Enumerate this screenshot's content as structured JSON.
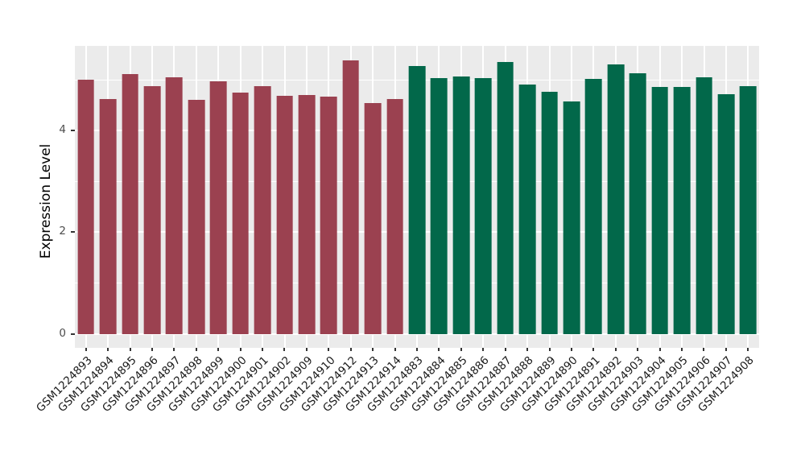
{
  "figure": {
    "background_color": "#FFFFFF",
    "panel_background_color": "#EBEBEB",
    "gridline_color": "#FFFFFF",
    "axis_tick_color": "#333333",
    "y_tick_text_color": "#4D4D4D",
    "x_tick_text_color": "#1A1A1A"
  },
  "chart_data": {
    "type": "bar",
    "title": "",
    "xlabel": "",
    "ylabel": "Expression Level",
    "ylim": [
      -0.27,
      5.65
    ],
    "ytick_labels": [
      "0",
      "2",
      "4"
    ],
    "ytick_values": [
      0,
      2,
      4
    ],
    "minor_gridline_values": [
      1,
      3,
      5
    ],
    "grid": "white major and minor horizontal gridlines on gray panel; white vertical gridline at each bar center",
    "legend_position": "none",
    "x_label_rotation_deg": 45,
    "group_colors": {
      "group1": "#9B4150",
      "group2": "#02684A"
    },
    "bars": [
      {
        "label": "GSM1224893",
        "value": 5.0,
        "group": "group1"
      },
      {
        "label": "GSM1224894",
        "value": 4.62,
        "group": "group1"
      },
      {
        "label": "GSM1224895",
        "value": 5.11,
        "group": "group1"
      },
      {
        "label": "GSM1224896",
        "value": 4.88,
        "group": "group1"
      },
      {
        "label": "GSM1224897",
        "value": 5.05,
        "group": "group1"
      },
      {
        "label": "GSM1224898",
        "value": 4.6,
        "group": "group1"
      },
      {
        "label": "GSM1224899",
        "value": 4.97,
        "group": "group1"
      },
      {
        "label": "GSM1224900",
        "value": 4.75,
        "group": "group1"
      },
      {
        "label": "GSM1224901",
        "value": 4.88,
        "group": "group1"
      },
      {
        "label": "GSM1224902",
        "value": 4.68,
        "group": "group1"
      },
      {
        "label": "GSM1224909",
        "value": 4.7,
        "group": "group1"
      },
      {
        "label": "GSM1224910",
        "value": 4.66,
        "group": "group1"
      },
      {
        "label": "GSM1224912",
        "value": 5.38,
        "group": "group1"
      },
      {
        "label": "GSM1224913",
        "value": 4.54,
        "group": "group1"
      },
      {
        "label": "GSM1224914",
        "value": 4.62,
        "group": "group1"
      },
      {
        "label": "GSM1224883",
        "value": 5.27,
        "group": "group2"
      },
      {
        "label": "GSM1224884",
        "value": 5.03,
        "group": "group2"
      },
      {
        "label": "GSM1224885",
        "value": 5.07,
        "group": "group2"
      },
      {
        "label": "GSM1224886",
        "value": 5.03,
        "group": "group2"
      },
      {
        "label": "GSM1224887",
        "value": 5.35,
        "group": "group2"
      },
      {
        "label": "GSM1224888",
        "value": 4.9,
        "group": "group2"
      },
      {
        "label": "GSM1224889",
        "value": 4.76,
        "group": "group2"
      },
      {
        "label": "GSM1224890",
        "value": 4.57,
        "group": "group2"
      },
      {
        "label": "GSM1224891",
        "value": 5.02,
        "group": "group2"
      },
      {
        "label": "GSM1224892",
        "value": 5.3,
        "group": "group2"
      },
      {
        "label": "GSM1224903",
        "value": 5.12,
        "group": "group2"
      },
      {
        "label": "GSM1224904",
        "value": 4.86,
        "group": "group2"
      },
      {
        "label": "GSM1224905",
        "value": 4.85,
        "group": "group2"
      },
      {
        "label": "GSM1224906",
        "value": 5.05,
        "group": "group2"
      },
      {
        "label": "GSM1224907",
        "value": 4.71,
        "group": "group2"
      },
      {
        "label": "GSM1224908",
        "value": 4.87,
        "group": "group2"
      }
    ]
  }
}
